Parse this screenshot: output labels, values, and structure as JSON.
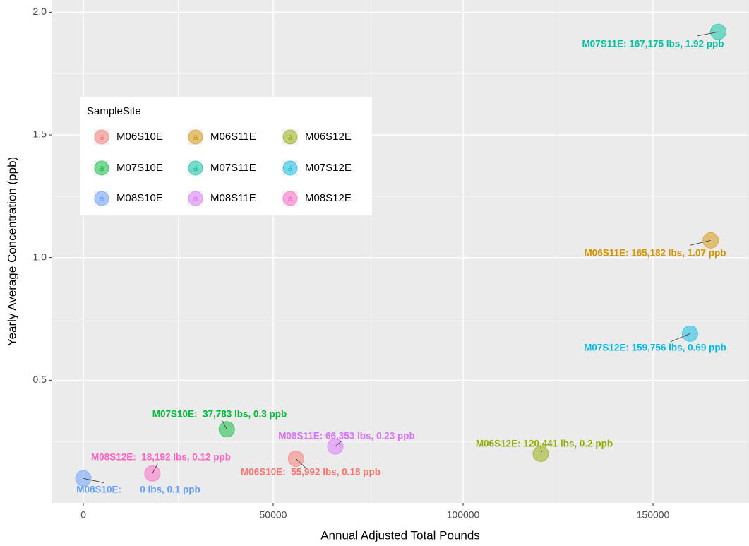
{
  "chart_data": {
    "type": "scatter",
    "x_label": "Annual Adjusted Total Pounds",
    "y_label": "Yearly Average Concentration (ppb)",
    "legend_title": "SampleSite",
    "legend_position": "top-left",
    "grid": true,
    "xlim": [
      -8364,
      175279
    ],
    "ylim": [
      0,
      2.05
    ],
    "xticks": [
      0,
      50000,
      100000,
      150000
    ],
    "yticks": [
      0.5,
      {
        "value": 1,
        "label": "1.0"
      },
      1.5,
      {
        "value": 2,
        "label": "2.0"
      }
    ],
    "series": [
      {
        "name": "M06S10E",
        "color": "#F8766D",
        "x": [
          55992
        ],
        "values": [
          0.18
        ],
        "labels": [
          "M06S10E:  55,992 lbs, 0.18 ppb"
        ]
      },
      {
        "name": "M06S11E",
        "color": "#D39200",
        "x": [
          165182
        ],
        "values": [
          1.07
        ],
        "labels": [
          "M06S11E: 165,182 lbs, 1.07 ppb"
        ]
      },
      {
        "name": "M06S12E",
        "color": "#93AA00",
        "x": [
          120441
        ],
        "values": [
          0.2
        ],
        "labels": [
          "M06S12E: 120,441 lbs, 0.2 ppb"
        ]
      },
      {
        "name": "M07S10E",
        "color": "#00BA38",
        "x": [
          37783
        ],
        "values": [
          0.3
        ],
        "labels": [
          "M07S10E:  37,783 lbs, 0.3 ppb"
        ]
      },
      {
        "name": "M07S11E",
        "color": "#00C19F",
        "x": [
          167175
        ],
        "values": [
          1.92
        ],
        "labels": [
          "M07S11E: 167,175 lbs, 1.92 ppb"
        ]
      },
      {
        "name": "M07S12E",
        "color": "#00B9E3",
        "x": [
          159756
        ],
        "values": [
          0.69
        ],
        "labels": [
          "M07S12E: 159,756 lbs, 0.69 ppb"
        ]
      },
      {
        "name": "M08S10E",
        "color": "#619CFF",
        "x": [
          0
        ],
        "values": [
          0.1
        ],
        "labels": [
          "M08S10E:       0 lbs, 0.1 ppb"
        ]
      },
      {
        "name": "M08S11E",
        "color": "#DB72FB",
        "x": [
          66353
        ],
        "values": [
          0.23
        ],
        "labels": [
          "M08S11E: 66,353 lbs, 0.23 ppb"
        ]
      },
      {
        "name": "M08S12E",
        "color": "#FF61C3",
        "x": [
          18192
        ],
        "values": [
          0.12
        ],
        "labels": [
          "M08S12E:  18,192 lbs, 0.12 ppb"
        ]
      }
    ]
  }
}
